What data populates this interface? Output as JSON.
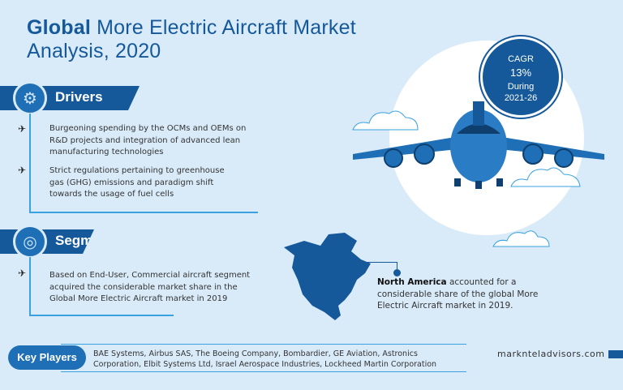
{
  "title": {
    "bold": "Global",
    "rest": " More Electric Aircraft Market",
    "line2": "Analysis, 2020"
  },
  "cagr": {
    "label": "CAGR",
    "value": "13%",
    "during": "During",
    "period": "2021-26"
  },
  "drivers": {
    "heading": "Drivers",
    "items": [
      "Burgeoning spending by the OCMs and OEMs on R&D projects and integration of advanced lean manufacturing technologies",
      "Strict regulations pertaining to greenhouse gas (GHG) emissions and paradigm shift towards the usage of fuel cells"
    ]
  },
  "segment": {
    "heading": "Segment",
    "items": [
      "Based on End-User, Commercial aircraft segment acquired the considerable market share in the Global More Electric Aircraft market in 2019"
    ]
  },
  "region": {
    "bold": "North America",
    "rest": " accounted for a considerable share of the global More Electric Aircraft market in 2019."
  },
  "key_players": {
    "label": "Key Players",
    "text": "BAE Systems, Airbus SAS, The Boeing Company, Bombardier, GE Aviation, Astronics Corporation, Elbit Systems Ltd, Israel Aerospace Industries, Lockheed Martin Corporation"
  },
  "footer": {
    "site": "marknteladvisors.com"
  },
  "colors": {
    "background": "#d9ebf9",
    "primary": "#15599b",
    "accent": "#3aa2e0"
  }
}
